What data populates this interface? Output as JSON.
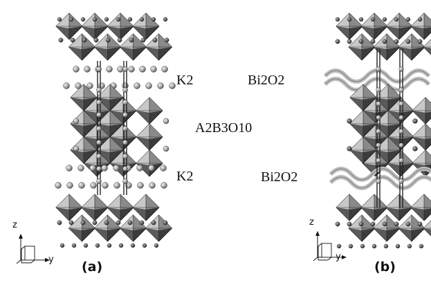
{
  "figure": {
    "panel_a": {
      "caption": "(a)",
      "layer_labels": {
        "top": "K2",
        "middle": "A2B3O10",
        "bottom": "K2"
      },
      "axes": {
        "vertical": "z",
        "horizontal": "y"
      }
    },
    "panel_b": {
      "caption": "(b)",
      "layer_labels": {
        "top": "Bi2O2",
        "bottom": "Bi2O2"
      },
      "axes": {
        "vertical": "z",
        "horizontal": "y"
      }
    }
  },
  "colors": {
    "octahedron_dark": "#3c3c3c",
    "octahedron_mid": "#8a8a8a",
    "octahedron_light": "#c8c8c8",
    "atom": "#9a9a9a",
    "bond": "#222222",
    "bi2o2_layer": "#bdbdbd"
  }
}
